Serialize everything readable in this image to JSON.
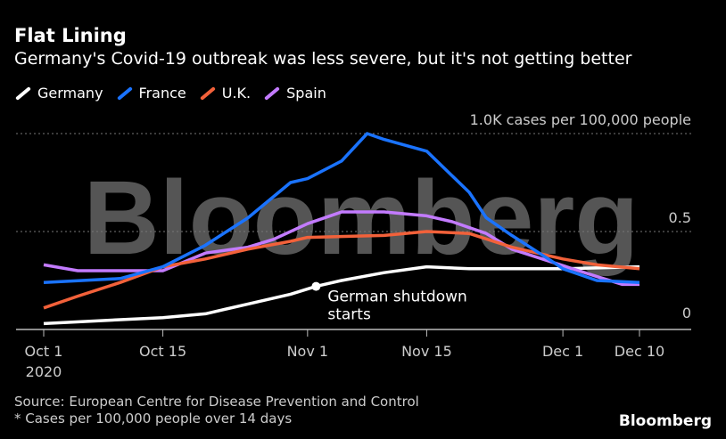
{
  "chart_data": {
    "type": "line",
    "title": "Flat Lining",
    "subtitle": "Germany's Covid-19 outbreak was less severe, but it's not getting better",
    "ylabel": "1.0K cases per 100,000 people",
    "ylim": [
      0,
      1.0
    ],
    "y_ticks": [
      {
        "v": 0,
        "label": "0"
      },
      {
        "v": 0.5,
        "label": "0.5"
      },
      {
        "v": 1.0,
        "label": "1.0K cases per 100,000 people"
      }
    ],
    "x_ticks": [
      {
        "day": 0,
        "label": "Oct 1",
        "sub": "2020"
      },
      {
        "day": 14,
        "label": "Oct 15"
      },
      {
        "day": 31,
        "label": "Nov 1"
      },
      {
        "day": 45,
        "label": "Nov 15"
      },
      {
        "day": 61,
        "label": "Dec 1"
      },
      {
        "day": 70,
        "label": "Dec 10"
      }
    ],
    "xlim": [
      0,
      70
    ],
    "series": [
      {
        "name": "Germany",
        "color": "#ffffff",
        "x": [
          0,
          9,
          14,
          19,
          24,
          29,
          32,
          35,
          40,
          45,
          50,
          61,
          70
        ],
        "values": [
          0.03,
          0.05,
          0.06,
          0.08,
          0.13,
          0.18,
          0.22,
          0.25,
          0.29,
          0.32,
          0.31,
          0.31,
          0.32
        ]
      },
      {
        "name": "France",
        "color": "#1a73ff",
        "x": [
          0,
          9,
          14,
          19,
          24,
          29,
          31,
          35,
          38,
          40,
          45,
          50,
          52,
          55,
          60,
          61,
          65,
          70
        ],
        "values": [
          0.24,
          0.26,
          0.32,
          0.43,
          0.57,
          0.75,
          0.77,
          0.86,
          1.0,
          0.97,
          0.91,
          0.7,
          0.57,
          0.48,
          0.34,
          0.31,
          0.25,
          0.24
        ]
      },
      {
        "name": "U.K.",
        "color": "#f2613a",
        "x": [
          0,
          4,
          9,
          14,
          19,
          24,
          29,
          31,
          40,
          45,
          50,
          55,
          61,
          65,
          70
        ],
        "values": [
          0.11,
          0.17,
          0.24,
          0.32,
          0.36,
          0.41,
          0.45,
          0.47,
          0.48,
          0.5,
          0.49,
          0.42,
          0.36,
          0.33,
          0.31
        ]
      },
      {
        "name": "Spain",
        "color": "#c37bff",
        "x": [
          0,
          4,
          14,
          19,
          24,
          27,
          31,
          35,
          40,
          45,
          48,
          52,
          55,
          60,
          65,
          68,
          70
        ],
        "values": [
          0.33,
          0.3,
          0.3,
          0.39,
          0.42,
          0.46,
          0.54,
          0.6,
          0.6,
          0.58,
          0.55,
          0.49,
          0.41,
          0.34,
          0.27,
          0.23,
          0.23
        ]
      }
    ],
    "annotation": {
      "text1": "German shutdown",
      "text2": "starts",
      "day": 32,
      "value": 0.22
    }
  },
  "source": "Source: European Centre for Disease Prevention and Control",
  "note": "* Cases per 100,000 people over 14 days",
  "brand": "Bloomberg",
  "watermark": "Bloomberg"
}
